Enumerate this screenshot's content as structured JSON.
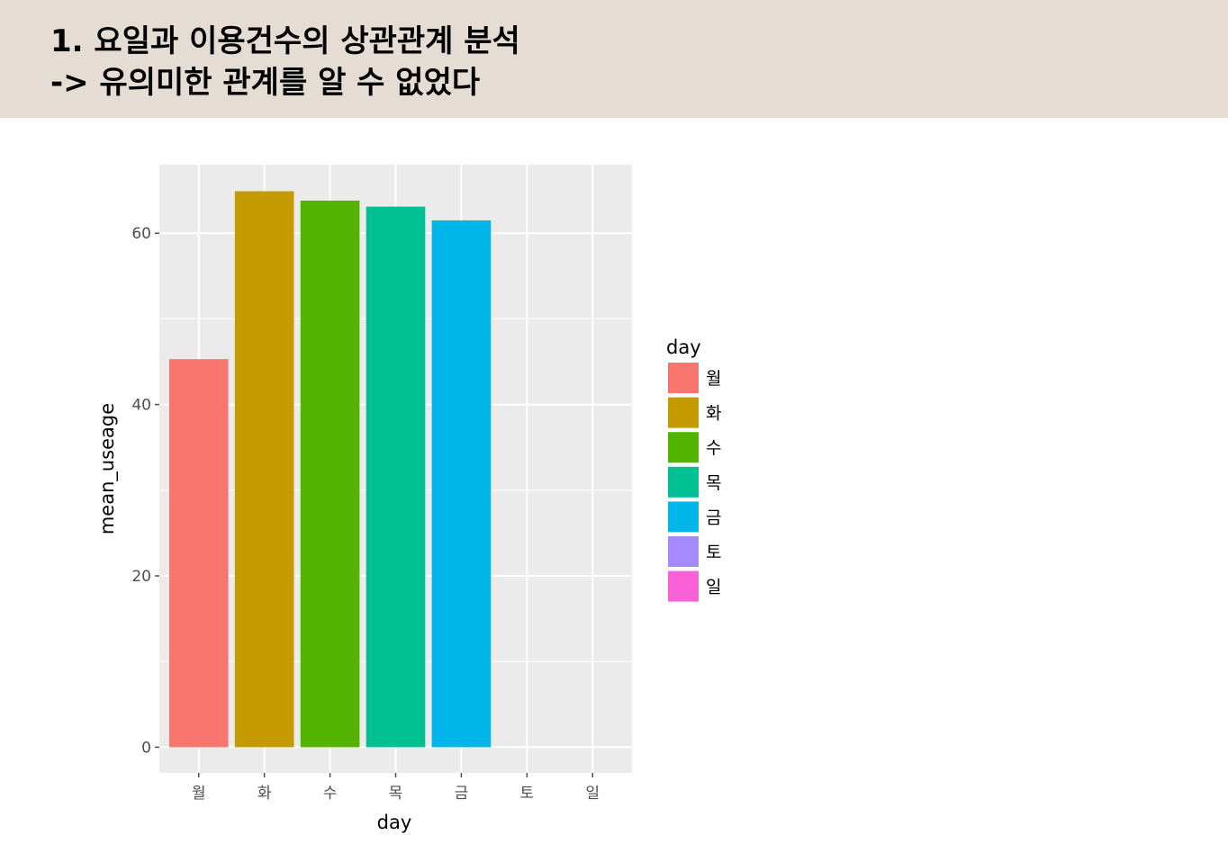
{
  "slide": {
    "title_line_1": "1.  요일과 이용건수의 상관관계 분석",
    "title_line_2": "-> 유의미한 관계를 알 수 없었다",
    "header_color": "#e5dcd3"
  },
  "chart_data": {
    "type": "bar",
    "xlabel": "day",
    "ylabel": "mean_useage",
    "categories": [
      "월",
      "화",
      "수",
      "목",
      "금",
      "토",
      "일"
    ],
    "values": [
      45.3,
      64.9,
      63.8,
      63.1,
      61.5,
      null,
      null
    ],
    "colors": [
      "#F8766D",
      "#C49A00",
      "#53B400",
      "#00C094",
      "#00B6EB",
      "#A58AFF",
      "#FB61D7"
    ],
    "ylim": [
      -3,
      68
    ],
    "yticks": [
      0,
      20,
      40,
      60
    ],
    "grid": true,
    "panel_background": "#ebebeb",
    "legend": {
      "title": "day",
      "position": "right",
      "entries": [
        "월",
        "화",
        "수",
        "목",
        "금",
        "토",
        "일"
      ]
    }
  }
}
